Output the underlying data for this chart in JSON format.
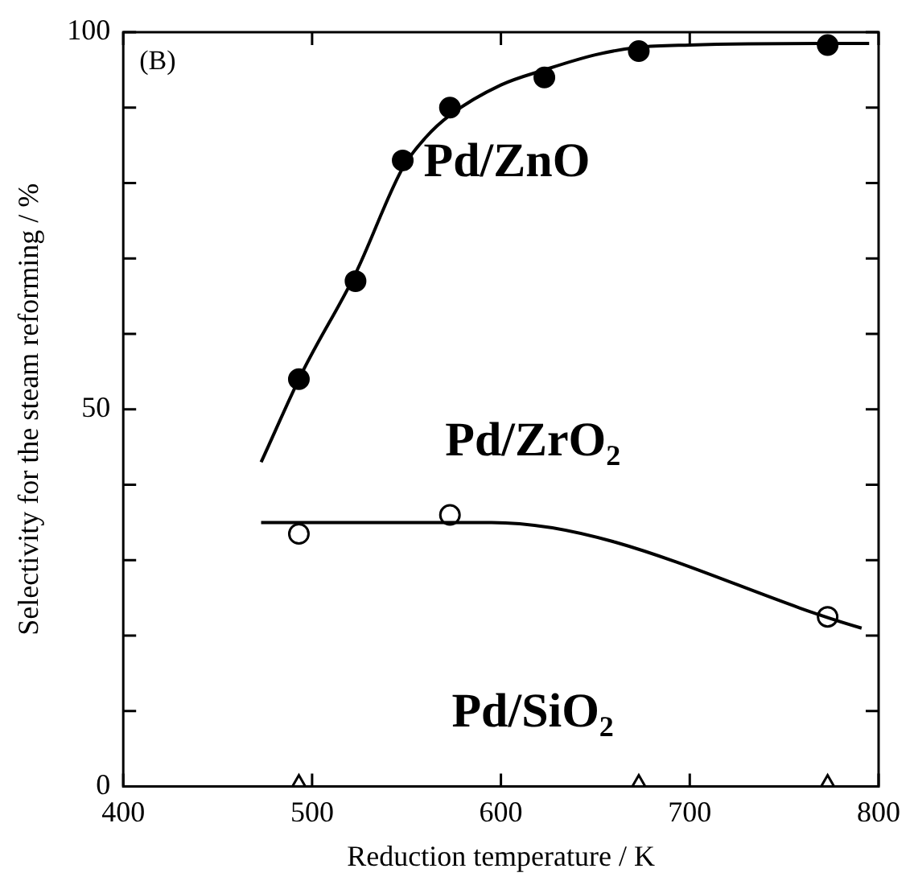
{
  "chart_data": {
    "type": "scatter",
    "xlabel": "Reduction temperature / K",
    "ylabel": "Selectivity for the steam reforming / %",
    "xlim": [
      400,
      800
    ],
    "xticks": [
      400,
      500,
      600,
      700,
      800
    ],
    "ylim": [
      0,
      100
    ],
    "yticks": [
      0,
      {
        "value": 10,
        "label": null
      },
      {
        "value": 20,
        "label": null
      },
      {
        "value": 30,
        "label": null
      },
      {
        "value": 40,
        "label": null
      },
      50,
      {
        "value": 60,
        "label": null
      },
      {
        "value": 70,
        "label": null
      },
      {
        "value": 80,
        "label": null
      },
      {
        "value": 90,
        "label": null
      },
      100
    ],
    "grid": false,
    "legend": false,
    "annotations": [
      "(B)"
    ],
    "series": [
      {
        "type": "line",
        "color": "#000000",
        "marker": "none",
        "x": [
          473,
          495,
          523,
          548,
          560,
          573,
          600,
          623,
          650,
          673,
          700,
          773,
          795
        ],
        "values": [
          43,
          55,
          68,
          82,
          86,
          89,
          93,
          95,
          97,
          98,
          98.3,
          98.5,
          98.5
        ]
      },
      {
        "type": "line",
        "color": "#000000",
        "marker": "none",
        "x": [
          473,
          595,
          791
        ],
        "values": [
          35,
          35,
          21
        ]
      },
      {
        "name": "Pd/ZnO",
        "color": "#000000",
        "marker": "circle",
        "x": [
          493,
          523,
          548,
          573,
          623,
          673,
          773
        ],
        "values": [
          54,
          67,
          83,
          90,
          94,
          97.5,
          98.3
        ]
      },
      {
        "name": "Pd/ZrO₂",
        "color": "#000000",
        "marker": "circle",
        "x": [
          493,
          573,
          773
        ],
        "values": [
          33.5,
          36,
          22.5
        ]
      },
      {
        "name": "Pd/SiO₂",
        "color": "#000000",
        "marker": "triangle",
        "x": [
          493,
          673,
          773
        ],
        "values": [
          0,
          0,
          0
        ]
      }
    ]
  }
}
